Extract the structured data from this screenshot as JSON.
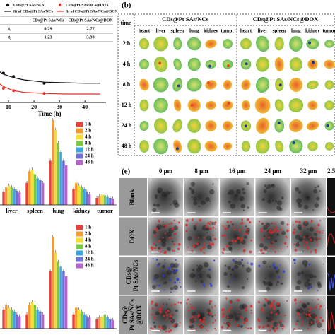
{
  "chart_data": [
    {
      "type": "scatter",
      "xlabel": "Time (h)",
      "xlim": [
        0,
        48
      ],
      "xticks": [
        10,
        20,
        30,
        40
      ],
      "ylim": [
        0,
        1
      ],
      "series": [
        {
          "name": "CDs@Pt SAs/NCs",
          "color": "#111111",
          "mode": "markers",
          "x": [
            8,
            12,
            24
          ],
          "values": [
            0.52,
            0.46,
            0.34
          ]
        },
        {
          "name": "CDs@Pt SAs/NCs@DOX",
          "color": "#e8302a",
          "mode": "markers",
          "x": [
            8,
            12,
            24
          ],
          "values": [
            0.25,
            0.21,
            0.16
          ]
        },
        {
          "name": "fit of CDs@Pt SAs/NCs",
          "color": "#111111",
          "mode": "line",
          "x": [
            0,
            4,
            8,
            12,
            16,
            24,
            32,
            40,
            46
          ],
          "values": [
            0.9,
            0.62,
            0.5,
            0.44,
            0.4,
            0.36,
            0.35,
            0.34,
            0.34
          ]
        },
        {
          "name": "fit of CDs@Pt SAs/NCs@DOX",
          "color": "#e8302a",
          "mode": "line",
          "x": [
            0,
            4,
            8,
            12,
            16,
            24,
            32,
            40,
            46
          ],
          "values": [
            0.8,
            0.42,
            0.28,
            0.21,
            0.18,
            0.16,
            0.15,
            0.15,
            0.15
          ]
        }
      ],
      "table": {
        "header": [
          "CDs@Pt SAs/NCs",
          "CDs@Pt SAs/NCs@DOX"
        ],
        "rows": [
          [
            "t₁",
            "0.29",
            "2.77"
          ],
          [
            "t₂",
            "1.23",
            "3.90"
          ]
        ]
      }
    },
    {
      "type": "bar",
      "categories": [
        "liver",
        "spleen",
        "lung",
        "kidney",
        "tumor"
      ],
      "ylim": [
        0,
        10
      ],
      "legend": "top-right",
      "series": [
        {
          "name": "1 h",
          "color": "#e8413c",
          "values": [
            1.5,
            2.5,
            5,
            1.8,
            0.8
          ]
        },
        {
          "name": "2 h",
          "color": "#f59a2f",
          "values": [
            2,
            3.8,
            9.6,
            2.5,
            1
          ]
        },
        {
          "name": "4 h",
          "color": "#f2de36",
          "values": [
            2.2,
            4,
            8.5,
            2.2,
            1.2
          ]
        },
        {
          "name": "8 h",
          "color": "#7ac943",
          "values": [
            2,
            3.5,
            7,
            2,
            1.1
          ]
        },
        {
          "name": "12 h",
          "color": "#3aa6dd",
          "values": [
            1.8,
            3,
            6,
            1.8,
            0.9
          ]
        },
        {
          "name": "24 h",
          "color": "#6b6fd6",
          "values": [
            1.6,
            2.8,
            5,
            1.5,
            0.8
          ]
        },
        {
          "name": "48 h",
          "color": "#b565c9",
          "values": [
            1.4,
            2.5,
            4.5,
            1.2,
            0.7
          ]
        }
      ]
    },
    {
      "type": "bar",
      "categories": [
        null,
        null,
        null,
        null,
        null
      ],
      "ylim": [
        0,
        10
      ],
      "legend": "top-right",
      "series": [
        {
          "name": "1 h",
          "color": "#e8413c",
          "values": [
            2,
            1.5,
            6,
            1.5,
            1
          ]
        },
        {
          "name": "2 h",
          "color": "#f59a2f",
          "values": [
            2.5,
            2.5,
            9.6,
            2.2,
            1.2
          ]
        },
        {
          "name": "4 h",
          "color": "#f2de36",
          "values": [
            2.2,
            2.8,
            8,
            2,
            1.3
          ]
        },
        {
          "name": "8 h",
          "color": "#7ac943",
          "values": [
            2,
            2.5,
            7,
            1.8,
            1.5
          ]
        },
        {
          "name": "12 h",
          "color": "#3aa6dd",
          "values": [
            1.8,
            2,
            6.5,
            1.5,
            1.2
          ]
        },
        {
          "name": "24 h",
          "color": "#6b6fd6",
          "values": [
            1.5,
            1.8,
            6,
            1.3,
            1
          ]
        },
        {
          "name": "48 h",
          "color": "#b565c9",
          "values": [
            1.3,
            1.5,
            5.5,
            1.2,
            0.9
          ]
        }
      ]
    }
  ],
  "panel_b": {
    "label": "(b)",
    "time_header": "time",
    "groups": [
      "CDs@Pt SAs/NCs",
      "CDs@Pt SAs/NCs@DOX"
    ],
    "organs": [
      "heart",
      "liver",
      "spleen",
      "lung",
      "kidney",
      "tumor"
    ],
    "times": [
      "2 h",
      "4 h",
      "8 h",
      "12 h",
      "24 h",
      "48 h"
    ]
  },
  "panel_e": {
    "label": "(e)",
    "depths": [
      "0 μm",
      "8 μm",
      "16 μm",
      "24 μm",
      "32 μm",
      "2.5"
    ],
    "rows": [
      [
        "Blank"
      ],
      [
        "DOX"
      ],
      [
        "CDs@",
        "Pt SAs/NCs"
      ],
      [
        "CDs@",
        "Pt SAs/NCs",
        "@DOX"
      ]
    ]
  }
}
